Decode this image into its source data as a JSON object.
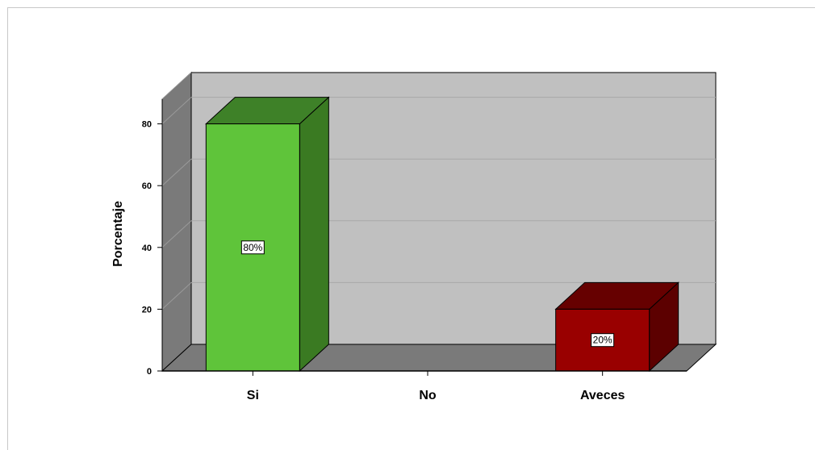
{
  "chart_data": {
    "type": "bar",
    "categories": [
      "Si",
      "No",
      "Aveces"
    ],
    "values": [
      80,
      0,
      20
    ],
    "data_labels": [
      "80%",
      "",
      "20%"
    ],
    "bar_colors": [
      "#5fc43a",
      "",
      "#990000"
    ],
    "bar_side_colors": [
      "#3a7a22",
      "",
      "#5c0000"
    ],
    "bar_top_colors": [
      "#3e8128",
      "",
      "#660000"
    ],
    "title": "",
    "xlabel": "",
    "ylabel": "Porcentaje",
    "ylim": [
      0,
      88
    ],
    "yticks": [
      0,
      20,
      40,
      60,
      80
    ],
    "grid": true,
    "style": "3d"
  }
}
